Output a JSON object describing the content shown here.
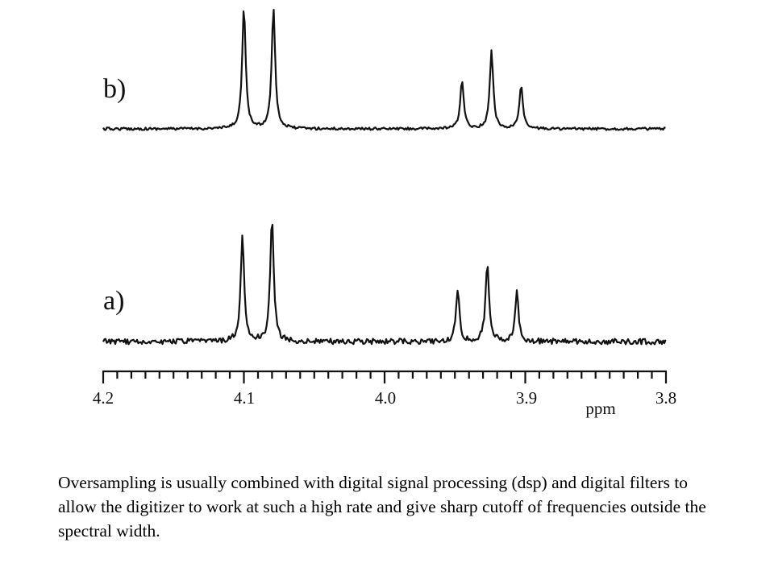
{
  "chart_data": {
    "type": "line",
    "x_reversed": true,
    "xlim": [
      4.2,
      3.8
    ],
    "xlabel": "ppm",
    "x_ticks": [
      "4.2",
      "4.1",
      "4.0",
      "3.9",
      "3.8"
    ],
    "grid": false,
    "series": [
      {
        "name": "b)",
        "peaks": [
          {
            "ppm": 4.1,
            "height": 1.0
          },
          {
            "ppm": 4.079,
            "height": 1.0
          },
          {
            "ppm": 3.945,
            "height": 0.4
          },
          {
            "ppm": 3.924,
            "height": 0.64
          },
          {
            "ppm": 3.903,
            "height": 0.36
          }
        ]
      },
      {
        "name": "a)",
        "peaks": [
          {
            "ppm": 4.101,
            "height": 0.85
          },
          {
            "ppm": 4.08,
            "height": 1.0
          },
          {
            "ppm": 3.948,
            "height": 0.4
          },
          {
            "ppm": 3.927,
            "height": 0.65
          },
          {
            "ppm": 3.906,
            "height": 0.4
          }
        ]
      }
    ]
  },
  "caption": "Oversampling is usually combined with digital signal processing (dsp) and digital filters to allow the digitizer to work at such a high rate and give sharp cutoff of frequencies outside the spectral width."
}
